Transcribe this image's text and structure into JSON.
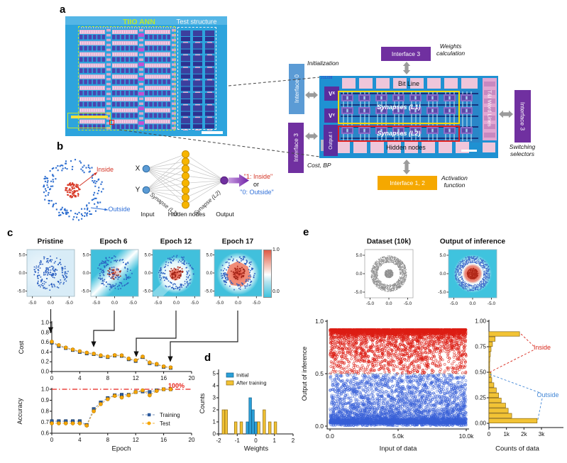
{
  "panel_labels": {
    "a": "a",
    "b": "b",
    "c": "c",
    "d": "d",
    "e": "e"
  },
  "panel_a": {
    "photo": {
      "ann_label": "TIIO ANN",
      "test_label": "Test structure"
    },
    "interfaces": {
      "top_box": "Interface 3",
      "top_caption_l1": "Weights",
      "top_caption_l2": "calculation",
      "left_top_box": "Interface 0",
      "left_top_caption": "Initialization",
      "left_bottom_box": "Interface 3",
      "left_bottom_caption": "Cost, BP",
      "right_box": "Interface 3",
      "right_caption_l1": "Switching",
      "right_caption_l2": "selectors",
      "bottom_box": "Interface 1, 2",
      "bottom_caption_l1": "Activation",
      "bottom_caption_l2": "function"
    },
    "chip": {
      "serial": "211228",
      "bit_line": "Bit Line",
      "vx_base": "V",
      "vx_sub": "X",
      "vy_base": "V",
      "vy_sub": "Y",
      "output_i": "Output I",
      "synapses_l1": "Synapses (L1)",
      "synapses_l2": "Synapses (L2)",
      "hidden_nodes": "Hidden nodes",
      "word_lines": "T&I Word Lines"
    },
    "colors": {
      "purple": "#7030a0",
      "lightblue": "#5b9bd5",
      "amber": "#f5a800",
      "arrow_gray": "#9b9b9b"
    }
  },
  "panel_b": {
    "inside": "Inside",
    "outside": "Outside",
    "x": "X",
    "y": "Y",
    "syn1": "Synapse (L1)",
    "syn2": "Synapse (L2)",
    "input": "Input",
    "hidden": "Hidden nodes",
    "output": "Output",
    "out1": "\"1: Inside\"",
    "or": "or",
    "out0": "\"0: Outside\"",
    "hidden_count": 8,
    "colors": {
      "inside_red": "#d43425",
      "outside_blue": "#2f6fd8",
      "node_yellow": "#f7b500",
      "node_blue": "#5b9bd5",
      "node_purple": "#7030a0"
    }
  },
  "chart_data": [
    {
      "id": "epoch_maps",
      "type": "heatmap",
      "titles": [
        "Pristine",
        "Epoch 6",
        "Epoch 12",
        "Epoch 17"
      ],
      "xticks": [
        "-5.0",
        "0.0",
        "-5.0"
      ],
      "yticks": [
        "5.0",
        "0.0",
        "-5.0"
      ],
      "xlim": [
        -6.5,
        6.5
      ],
      "ylim": [
        -6.5,
        6.5
      ],
      "colorbar": {
        "top": "1.0",
        "bottom": "0.0"
      },
      "ring_points": 130,
      "cluster_points": 60,
      "annotated_epochs": [
        0,
        6,
        12,
        17
      ]
    },
    {
      "id": "cost",
      "type": "line",
      "ylabel": "Cost",
      "x": [
        0,
        1,
        2,
        3,
        4,
        5,
        6,
        7,
        8,
        9,
        10,
        11,
        12,
        13,
        14,
        15,
        16,
        17
      ],
      "xticks": [
        "0",
        "4",
        "8",
        "12",
        "16",
        "20"
      ],
      "yticks": [
        "0.0",
        "0.2",
        "0.4",
        "0.6",
        "0.8",
        "1.0"
      ],
      "xlim": [
        0,
        20
      ],
      "ylim": [
        0,
        1
      ],
      "series": [
        {
          "name": "Training",
          "color": "#2d5b9e",
          "line_color": "#7a93b8",
          "marker": "square",
          "values": [
            0.59,
            0.52,
            0.48,
            0.44,
            0.4,
            0.37,
            0.355,
            0.315,
            0.295,
            0.325,
            0.32,
            0.25,
            0.215,
            0.295,
            0.17,
            0.145,
            0.095,
            0.075
          ]
        },
        {
          "name": "Test",
          "color": "#f7a600",
          "line_color": "#f0b23c",
          "marker": "circle",
          "values": [
            0.61,
            0.54,
            0.49,
            0.45,
            0.415,
            0.385,
            0.365,
            0.33,
            0.305,
            0.335,
            0.33,
            0.265,
            0.23,
            0.305,
            0.185,
            0.155,
            0.105,
            0.085
          ]
        }
      ]
    },
    {
      "id": "accuracy",
      "type": "line",
      "ylabel": "Accuracy",
      "xlabel": "Epoch",
      "x": [
        0,
        1,
        2,
        3,
        4,
        5,
        6,
        7,
        8,
        9,
        10,
        11,
        12,
        13,
        14,
        15,
        16,
        17
      ],
      "xticks": [
        "0",
        "4",
        "8",
        "12",
        "16",
        "20"
      ],
      "yticks": [
        "0.6",
        "0.7",
        "0.8",
        "0.9",
        "1.0"
      ],
      "xlim": [
        0,
        20
      ],
      "ylim": [
        0.6,
        1.0
      ],
      "ref_line": {
        "value": 1.0,
        "label": "100%",
        "color": "#e8221a"
      },
      "legend": [
        "Training",
        "Test"
      ],
      "series": [
        {
          "name": "Training",
          "color": "#2d5b9e",
          "line_color": "#7a93b8",
          "marker": "square",
          "values": [
            0.71,
            0.71,
            0.71,
            0.71,
            0.71,
            0.675,
            0.82,
            0.88,
            0.92,
            0.945,
            0.95,
            0.95,
            0.975,
            0.98,
            0.975,
            0.99,
            1.0,
            1.0
          ]
        },
        {
          "name": "Test",
          "color": "#f7a600",
          "line_color": "#f0b23c",
          "marker": "circle",
          "values": [
            0.69,
            0.69,
            0.69,
            0.69,
            0.69,
            0.67,
            0.8,
            0.865,
            0.91,
            0.94,
            0.925,
            0.945,
            0.975,
            0.99,
            0.945,
            0.985,
            1.0,
            1.0
          ]
        }
      ]
    },
    {
      "id": "weights_hist",
      "type": "bar",
      "xlabel": "Weights",
      "ylabel": "Counts",
      "xticks": [
        "-2",
        "-1",
        "0",
        "1",
        "2"
      ],
      "yticks": [
        "0",
        "1",
        "2",
        "3",
        "4",
        "5"
      ],
      "xlim": [
        -2,
        2
      ],
      "ylim": [
        0,
        5
      ],
      "bar_width": 0.14,
      "series": [
        {
          "name": "Initial",
          "color": "#2a9fd8",
          "edge": "#15618a",
          "bars": [
            [
              -0.45,
              1
            ],
            [
              -0.3,
              3
            ],
            [
              -0.15,
              2
            ],
            [
              0.0,
              1
            ],
            [
              0.15,
              1
            ]
          ]
        },
        {
          "name": "After training",
          "color": "#f2c233",
          "edge": "#8a6a15",
          "bars": [
            [
              -1.74,
              2
            ],
            [
              -1.59,
              2
            ],
            [
              -1.08,
              1
            ],
            [
              -0.78,
              1
            ],
            [
              0.15,
              1
            ],
            [
              0.45,
              2
            ],
            [
              0.75,
              1
            ],
            [
              1.05,
              1
            ]
          ]
        }
      ]
    },
    {
      "id": "dataset_map",
      "type": "scatter",
      "title": "Dataset (10k)",
      "xticks": [
        "-5.0",
        "0.0",
        "-5.0"
      ],
      "yticks": [
        "5.0",
        "0.0",
        "-5.0"
      ],
      "xlim": [
        -6.5,
        6.5
      ],
      "ylim": [
        -6.5,
        6.5
      ],
      "outer_ring": {
        "n": 1400,
        "r_min": 3.0,
        "r_max": 4.85
      },
      "inner_disk": {
        "n": 330,
        "r": 1.15
      },
      "color": "#8f8f8f"
    },
    {
      "id": "inference_map",
      "type": "heatmap",
      "title": "Output of inference",
      "xticks": [
        "-5.0",
        "0.0",
        "-5.0"
      ],
      "yticks": [
        "5.0",
        "0.0",
        "-5.0"
      ],
      "xlim": [
        -6.5,
        6.5
      ],
      "ylim": [
        -6.5,
        6.5
      ],
      "ring": {
        "n": 750,
        "r_min": 2.95,
        "r_max": 4.8,
        "color": "#3a66c8"
      },
      "core": {
        "n": 330,
        "r": 1.5,
        "color": "#b02818"
      }
    },
    {
      "id": "inference_scatter",
      "type": "scatter",
      "xlabel": "Input of data",
      "ylabel": "Output of inference",
      "xticks": [
        "0.0",
        "5.0k",
        "10.0k"
      ],
      "yticks": [
        "1.0",
        "0.5",
        "0.0"
      ],
      "xlim": [
        0,
        10000
      ],
      "ylim": [
        0,
        1
      ],
      "threshold": 0.5,
      "series": [
        {
          "name": "Inside (1)",
          "color": "220,30,20",
          "n": 2600,
          "band_n": 800,
          "base": 0.92,
          "spread": 0.42,
          "power": 2.8
        },
        {
          "name": "Outside (0)",
          "color": "55,95,215",
          "n": 3800,
          "band_n": 900,
          "base": 0.03,
          "spread": 0.46,
          "power": 2.6
        }
      ]
    },
    {
      "id": "counts_hist",
      "type": "bar",
      "orientation": "horizontal",
      "xlabel": "Counts of data",
      "xticks": [
        "0",
        "1k",
        "2k",
        "3k"
      ],
      "yticks": [
        "1.00",
        "0.75",
        "0.50",
        "0.25",
        "0.00"
      ],
      "xlim": [
        0,
        3600
      ],
      "ylim": [
        0,
        1
      ],
      "bin": 0.05,
      "bar_color": "#f2c335",
      "bar_edge": "#8a6a15",
      "bars": [
        [
          0.875,
          1750
        ],
        [
          0.825,
          350
        ],
        [
          0.775,
          200
        ],
        [
          0.725,
          120
        ],
        [
          0.675,
          80
        ],
        [
          0.625,
          50
        ],
        [
          0.575,
          40
        ],
        [
          0.525,
          40
        ],
        [
          0.475,
          120
        ],
        [
          0.425,
          160
        ],
        [
          0.375,
          280
        ],
        [
          0.325,
          420
        ],
        [
          0.275,
          550
        ],
        [
          0.225,
          700
        ],
        [
          0.175,
          950
        ],
        [
          0.125,
          1100
        ],
        [
          0.075,
          1300
        ],
        [
          0.025,
          2750
        ]
      ],
      "annotations": [
        {
          "label": "Inside",
          "color": "#d8281c"
        },
        {
          "label": "Outside",
          "color": "#4287d6"
        }
      ]
    }
  ]
}
